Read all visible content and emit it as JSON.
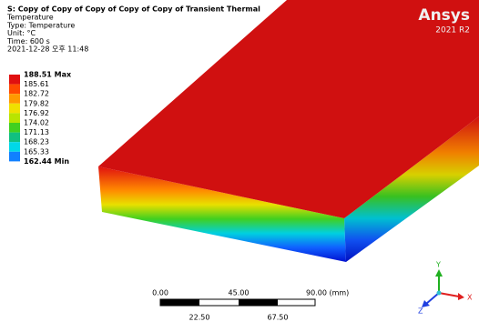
{
  "header": {
    "title": "S: Copy of Copy of Copy of Copy of Copy of Transient Thermal",
    "lines": [
      "Temperature",
      "Type: Temperature",
      "Unit: °C",
      "Time: 600 s",
      "2021-12-28 오후 11:48"
    ]
  },
  "legend": {
    "labels": [
      "188.51 Max",
      "185.61",
      "182.72",
      "179.82",
      "176.92",
      "174.02",
      "171.13",
      "168.23",
      "165.33",
      "162.44 Min"
    ],
    "colors": [
      "#e01010",
      "#ff4a00",
      "#ff9a00",
      "#f0e000",
      "#b8e400",
      "#40d020",
      "#10c080",
      "#00d8e8",
      "#1080ff",
      "#0010e8"
    ]
  },
  "logo": {
    "name": "Ansys",
    "version": "2021 R2"
  },
  "scale": {
    "top": [
      "0.00",
      "45.00",
      "90.00 (mm)"
    ],
    "bottom": [
      "22.50",
      "67.50"
    ]
  },
  "triad": {
    "y": "Y",
    "x": "X",
    "z": "Z"
  }
}
